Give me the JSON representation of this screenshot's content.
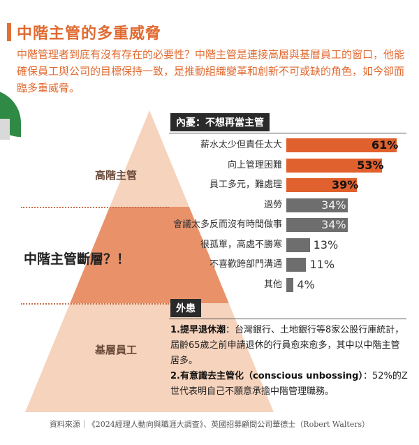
{
  "title": "中階主管的多重威脅",
  "intro": "中階管理者到底有沒有存在的必要性？中階主管是連接高層與基層員工的窗口，他能確保員工與公司的目標保持一致，是推動組織變革和創新不可或缺的角色，如今卻面臨多重威脅。",
  "pyramid": {
    "top_label": "高階主管",
    "middle_label": "中階主管斷層？！",
    "bottom_label": "基層員工"
  },
  "colors": {
    "accent": "#e06a30",
    "bar_orange": "#e0612e",
    "bar_gray": "#6e6e6e",
    "pyramid_light": "#f6d3bd",
    "pyramid_mid": "#e9926a"
  },
  "chart_data": {
    "type": "bar",
    "orientation": "horizontal",
    "title": "內憂：不想再當主管",
    "categories": [
      "薪水太少但責任太大",
      "向上管理困難",
      "員工多元，難處理",
      "過勞",
      "會議太多反而沒有時間做事",
      "很孤單，高處不勝寒",
      "不喜歡跨部門溝通",
      "其他"
    ],
    "values": [
      61,
      53,
      39,
      34,
      34,
      13,
      11,
      4
    ],
    "value_labels": [
      "61%",
      "53%",
      "39%",
      "34%",
      "34%",
      "13%",
      "11%",
      "4%"
    ],
    "highlight": [
      true,
      true,
      true,
      false,
      false,
      false,
      false,
      false
    ],
    "unit": "%",
    "xlim": [
      0,
      61
    ]
  },
  "external": {
    "heading": "外患",
    "item1_title": "1.提早退休潮",
    "item1_text": "：台灣銀行、土地銀行等8家公股行庫統計，屆齡65歲之前申請退休的行員愈來愈多，其中以中階主管居多。",
    "item2_title": "2.有意識去主管化（conscious unbossing）",
    "item2_text": "：52%的Z世代表明自己不願意承擔中階管理職務。"
  },
  "source": "資料來源｜《2024經理人動向與職涯大調查》、英國招募顧問公司華德士（Robert Walters）"
}
